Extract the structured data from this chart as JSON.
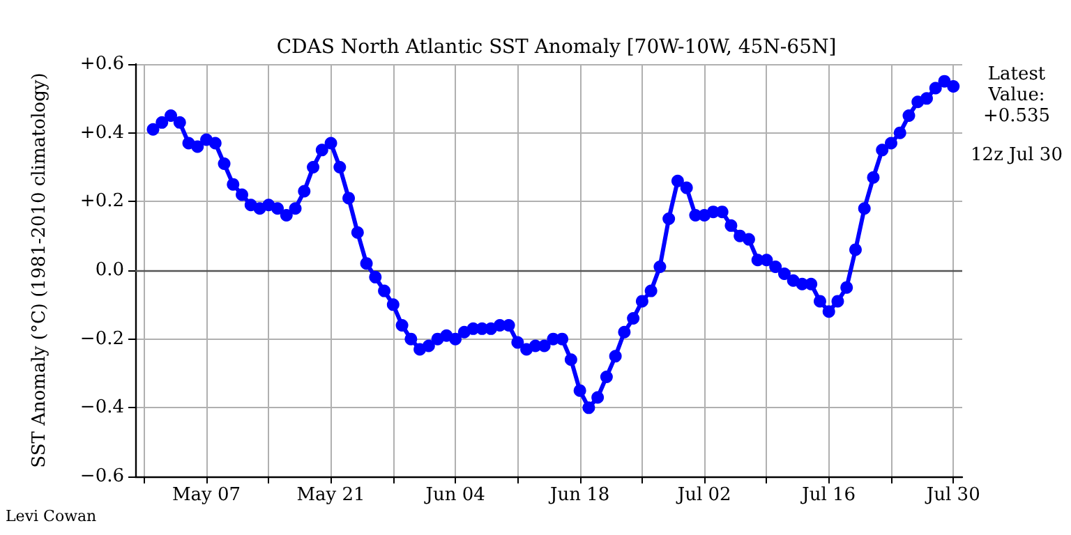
{
  "chart_data": {
    "type": "line",
    "title": "CDAS North Atlantic SST Anomaly [70W-10W, 45N-65N]",
    "ylabel": "SST Anomaly (°C) (1981-2010 climatology)",
    "annotations": [
      "Latest\nValue:\n+0.535",
      "12z Jul 30",
      "Levi Cowan"
    ],
    "x": [
      "--05-01",
      "--05-02",
      "--05-03",
      "--05-04",
      "--05-05",
      "--05-06",
      "--05-07",
      "--05-08",
      "--05-09",
      "--05-10",
      "--05-11",
      "--05-12",
      "--05-13",
      "--05-14",
      "--05-15",
      "--05-16",
      "--05-17",
      "--05-18",
      "--05-19",
      "--05-20",
      "--05-21",
      "--05-22",
      "--05-23",
      "--05-24",
      "--05-25",
      "--05-26",
      "--05-27",
      "--05-28",
      "--05-29",
      "--05-30",
      "--05-31",
      "--06-01",
      "--06-02",
      "--06-03",
      "--06-04",
      "--06-05",
      "--06-06",
      "--06-07",
      "--06-08",
      "--06-09",
      "--06-10",
      "--06-11",
      "--06-12",
      "--06-13",
      "--06-14",
      "--06-15",
      "--06-16",
      "--06-17",
      "--06-18",
      "--06-19",
      "--06-20",
      "--06-21",
      "--06-22",
      "--06-23",
      "--06-24",
      "--06-25",
      "--06-26",
      "--06-27",
      "--06-28",
      "--06-29",
      "--06-30",
      "--07-01",
      "--07-02",
      "--07-03",
      "--07-04",
      "--07-05",
      "--07-06",
      "--07-07",
      "--07-08",
      "--07-09",
      "--07-10",
      "--07-11",
      "--07-12",
      "--07-13",
      "--07-14",
      "--07-15",
      "--07-16",
      "--07-17",
      "--07-18",
      "--07-19",
      "--07-20",
      "--07-21",
      "--07-22",
      "--07-23",
      "--07-24",
      "--07-25",
      "--07-26",
      "--07-27",
      "--07-28",
      "--07-29",
      "--07-30"
    ],
    "series": [
      {
        "color": "#0000ff",
        "values": [
          0.41,
          0.43,
          0.45,
          0.43,
          0.37,
          0.36,
          0.38,
          0.37,
          0.31,
          0.25,
          0.22,
          0.19,
          0.18,
          0.19,
          0.18,
          0.16,
          0.18,
          0.23,
          0.3,
          0.35,
          0.37,
          0.3,
          0.21,
          0.11,
          0.02,
          -0.02,
          -0.06,
          -0.1,
          -0.16,
          -0.2,
          -0.23,
          -0.22,
          -0.2,
          -0.19,
          -0.2,
          -0.18,
          -0.17,
          -0.17,
          -0.17,
          -0.16,
          -0.16,
          -0.21,
          -0.23,
          -0.22,
          -0.22,
          -0.2,
          -0.2,
          -0.26,
          -0.35,
          -0.4,
          -0.37,
          -0.31,
          -0.25,
          -0.18,
          -0.14,
          -0.09,
          -0.06,
          0.01,
          0.15,
          0.26,
          0.24,
          0.16,
          0.16,
          0.17,
          0.17,
          0.13,
          0.1,
          0.09,
          0.03,
          0.03,
          0.01,
          -0.01,
          -0.03,
          -0.04,
          -0.04,
          -0.09,
          -0.12,
          -0.09,
          -0.05,
          0.06,
          0.18,
          0.27,
          0.35,
          0.37,
          0.4,
          0.45,
          0.49,
          0.5,
          0.53,
          0.55,
          0.535
        ]
      }
    ],
    "xlim": [
      "--04-29",
      "--07-31"
    ],
    "xticks": [
      {
        "value": "--04-30",
        "label": null
      },
      {
        "value": "--05-07",
        "label": "May 07"
      },
      {
        "value": "--05-14",
        "label": null
      },
      {
        "value": "--05-21",
        "label": "May 21"
      },
      {
        "value": "--05-28",
        "label": null
      },
      {
        "value": "--06-04",
        "label": "Jun 04"
      },
      {
        "value": "--06-11",
        "label": null
      },
      {
        "value": "--06-18",
        "label": "Jun 18"
      },
      {
        "value": "--06-25",
        "label": null
      },
      {
        "value": "--07-02",
        "label": "Jul 02"
      },
      {
        "value": "--07-09",
        "label": null
      },
      {
        "value": "--07-16",
        "label": "Jul 16"
      },
      {
        "value": "--07-23",
        "label": null
      },
      {
        "value": "--07-30",
        "label": "Jul 30"
      }
    ],
    "ylim": [
      -0.6,
      0.6
    ],
    "yticks": [
      {
        "value": -0.6,
        "label": "−0.6"
      },
      {
        "value": -0.4,
        "label": "−0.4"
      },
      {
        "value": -0.2,
        "label": "−0.2"
      },
      {
        "value": 0,
        "label": "0.0"
      },
      {
        "value": 0.2,
        "label": "+0.2"
      },
      {
        "value": 0.4,
        "label": "+0.4"
      },
      {
        "value": 0.6,
        "label": "+0.6"
      }
    ],
    "ref_lines": [
      {
        "axis": "y",
        "value": 0,
        "color": "#555555"
      }
    ],
    "grid": true,
    "marker": "circle",
    "line_style": "solid"
  }
}
